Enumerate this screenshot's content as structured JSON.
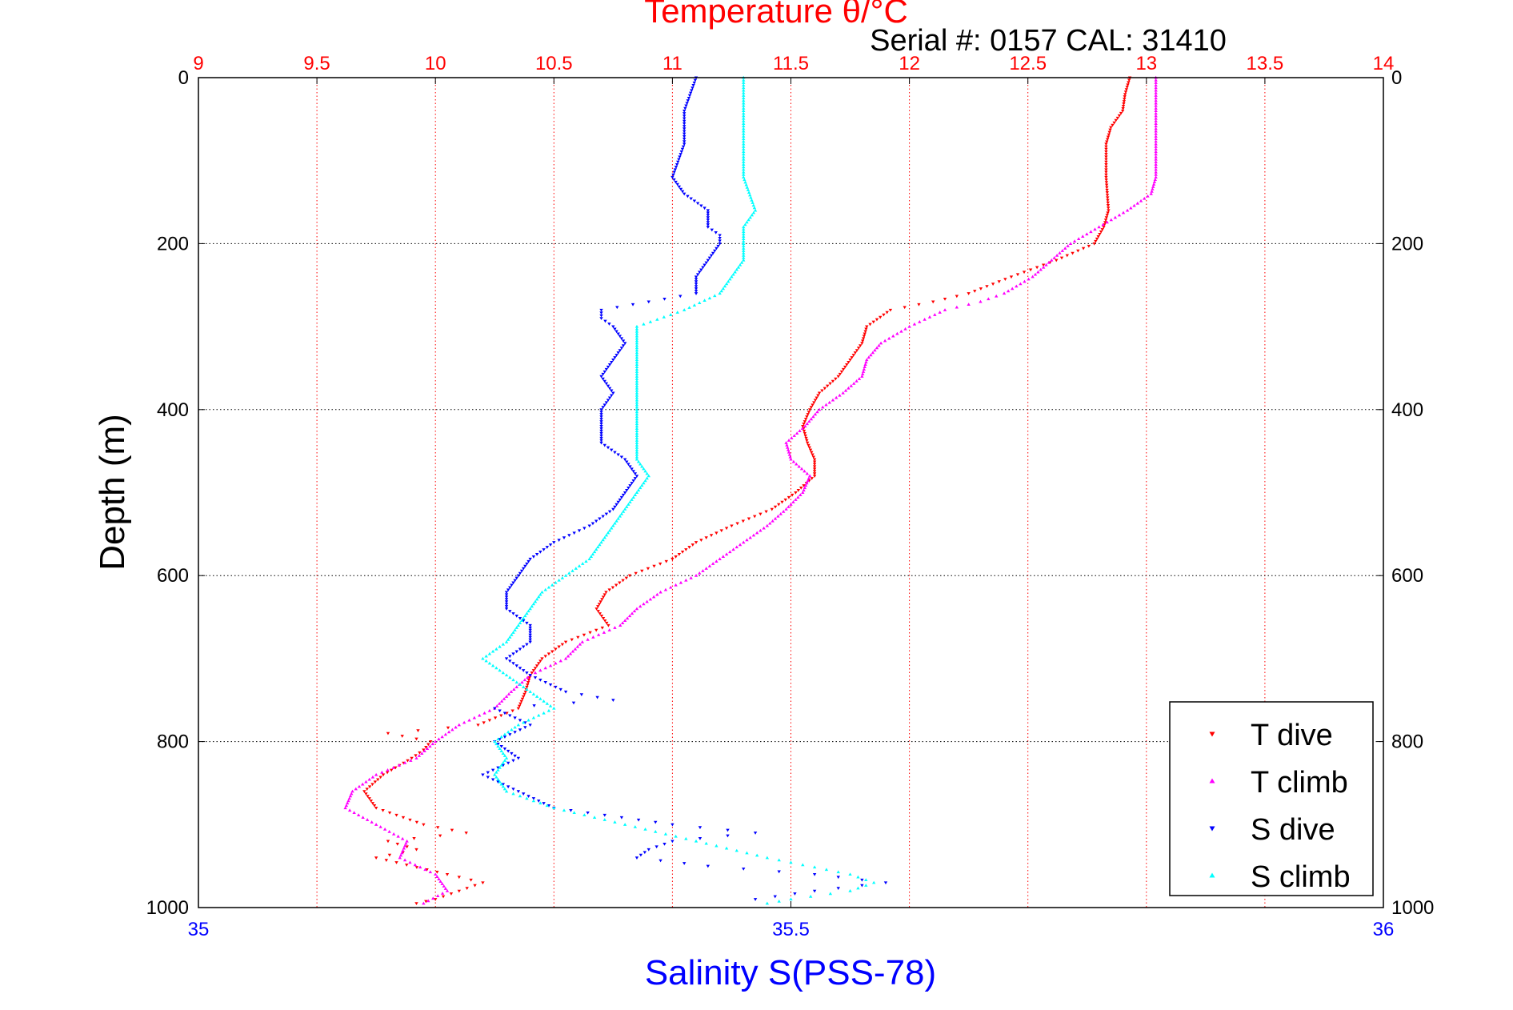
{
  "chart_data": {
    "type": "scatter",
    "title": "Temperature θ/°C",
    "subtitle": "Serial #: 0157  CAL: 31410",
    "ylabel": "Depth (m)",
    "xlabel_bottom": "Salinity S(PSS-78)",
    "axes": {
      "temperature_top": {
        "label": "Temperature θ/°C",
        "range": [
          9,
          14
        ],
        "ticks": [
          "9",
          "9.5",
          "10",
          "10.5",
          "11",
          "11.5",
          "12",
          "12.5",
          "13",
          "13.5",
          "14"
        ],
        "color": "#ff0000"
      },
      "salinity_bottom": {
        "label": "Salinity S(PSS-78)",
        "range": [
          35,
          36
        ],
        "ticks": [
          "35",
          "35.5",
          "36"
        ],
        "color": "#0000ff"
      },
      "depth": {
        "label": "Depth (m)",
        "range": [
          0,
          1000
        ],
        "reversed": true,
        "ticks": [
          "0",
          "200",
          "400",
          "600",
          "800",
          "1000"
        ]
      }
    },
    "grid": true,
    "legend_position": "bottom-right",
    "legend": [
      "T dive",
      "T climb",
      "S dive",
      "S climb"
    ],
    "series": [
      {
        "name": "T dive",
        "axis": "temperature",
        "color": "#ff0000",
        "marker": "triangle-down",
        "points": [
          [
            0,
            12.93
          ],
          [
            20,
            12.91
          ],
          [
            40,
            12.9
          ],
          [
            60,
            12.85
          ],
          [
            80,
            12.83
          ],
          [
            120,
            12.83
          ],
          [
            160,
            12.84
          ],
          [
            180,
            12.82
          ],
          [
            200,
            12.78
          ],
          [
            220,
            12.62
          ],
          [
            240,
            12.43
          ],
          [
            260,
            12.25
          ],
          [
            270,
            12.1
          ],
          [
            280,
            11.92
          ],
          [
            300,
            11.82
          ],
          [
            320,
            11.8
          ],
          [
            340,
            11.75
          ],
          [
            360,
            11.7
          ],
          [
            380,
            11.62
          ],
          [
            400,
            11.58
          ],
          [
            420,
            11.55
          ],
          [
            440,
            11.57
          ],
          [
            460,
            11.6
          ],
          [
            480,
            11.6
          ],
          [
            500,
            11.52
          ],
          [
            520,
            11.42
          ],
          [
            540,
            11.25
          ],
          [
            560,
            11.1
          ],
          [
            580,
            11.0
          ],
          [
            600,
            10.82
          ],
          [
            620,
            10.72
          ],
          [
            640,
            10.68
          ],
          [
            660,
            10.73
          ],
          [
            680,
            10.55
          ],
          [
            700,
            10.45
          ],
          [
            720,
            10.4
          ],
          [
            740,
            10.38
          ],
          [
            760,
            10.35
          ],
          [
            780,
            10.18
          ],
          [
            790,
            9.8
          ],
          [
            800,
            9.98
          ],
          [
            810,
            9.95
          ],
          [
            820,
            9.9
          ],
          [
            840,
            9.78
          ],
          [
            860,
            9.7
          ],
          [
            880,
            9.75
          ],
          [
            900,
            9.95
          ],
          [
            910,
            10.13
          ],
          [
            920,
            9.8
          ],
          [
            930,
            9.92
          ],
          [
            940,
            9.75
          ],
          [
            960,
            10.05
          ],
          [
            970,
            10.2
          ],
          [
            980,
            10.1
          ],
          [
            990,
            10.0
          ],
          [
            995,
            9.92
          ]
        ]
      },
      {
        "name": "T climb",
        "axis": "temperature",
        "color": "#ff00ff",
        "marker": "triangle-up",
        "points": [
          [
            0,
            13.04
          ],
          [
            40,
            13.04
          ],
          [
            80,
            13.04
          ],
          [
            120,
            13.04
          ],
          [
            140,
            13.02
          ],
          [
            160,
            12.92
          ],
          [
            180,
            12.8
          ],
          [
            200,
            12.68
          ],
          [
            220,
            12.6
          ],
          [
            240,
            12.52
          ],
          [
            260,
            12.4
          ],
          [
            270,
            12.3
          ],
          [
            280,
            12.15
          ],
          [
            300,
            12.0
          ],
          [
            320,
            11.88
          ],
          [
            340,
            11.82
          ],
          [
            360,
            11.8
          ],
          [
            380,
            11.72
          ],
          [
            400,
            11.62
          ],
          [
            420,
            11.56
          ],
          [
            440,
            11.48
          ],
          [
            460,
            11.5
          ],
          [
            480,
            11.58
          ],
          [
            500,
            11.55
          ],
          [
            520,
            11.48
          ],
          [
            540,
            11.4
          ],
          [
            560,
            11.3
          ],
          [
            580,
            11.2
          ],
          [
            600,
            11.1
          ],
          [
            620,
            10.95
          ],
          [
            640,
            10.85
          ],
          [
            660,
            10.78
          ],
          [
            680,
            10.62
          ],
          [
            700,
            10.55
          ],
          [
            720,
            10.4
          ],
          [
            740,
            10.32
          ],
          [
            760,
            10.25
          ],
          [
            780,
            10.1
          ],
          [
            800,
            10.0
          ],
          [
            820,
            9.92
          ],
          [
            840,
            9.75
          ],
          [
            860,
            9.65
          ],
          [
            880,
            9.62
          ],
          [
            900,
            9.75
          ],
          [
            920,
            9.88
          ],
          [
            940,
            9.85
          ],
          [
            960,
            10.0
          ],
          [
            980,
            10.05
          ],
          [
            995,
            9.95
          ]
        ]
      },
      {
        "name": "S dive",
        "axis": "salinity",
        "color": "#0000ff",
        "marker": "triangle-down",
        "points": [
          [
            0,
            35.42
          ],
          [
            40,
            35.41
          ],
          [
            80,
            35.41
          ],
          [
            120,
            35.4
          ],
          [
            140,
            35.41
          ],
          [
            160,
            35.43
          ],
          [
            180,
            35.43
          ],
          [
            190,
            35.44
          ],
          [
            200,
            35.44
          ],
          [
            220,
            35.43
          ],
          [
            240,
            35.42
          ],
          [
            260,
            35.42
          ],
          [
            270,
            35.38
          ],
          [
            280,
            35.34
          ],
          [
            290,
            35.34
          ],
          [
            300,
            35.35
          ],
          [
            320,
            35.36
          ],
          [
            340,
            35.35
          ],
          [
            360,
            35.34
          ],
          [
            380,
            35.35
          ],
          [
            400,
            35.34
          ],
          [
            420,
            35.34
          ],
          [
            440,
            35.34
          ],
          [
            460,
            35.36
          ],
          [
            480,
            35.37
          ],
          [
            500,
            35.36
          ],
          [
            520,
            35.35
          ],
          [
            540,
            35.33
          ],
          [
            560,
            35.3
          ],
          [
            580,
            35.28
          ],
          [
            600,
            35.27
          ],
          [
            620,
            35.26
          ],
          [
            640,
            35.26
          ],
          [
            660,
            35.28
          ],
          [
            680,
            35.28
          ],
          [
            700,
            35.26
          ],
          [
            720,
            35.28
          ],
          [
            740,
            35.31
          ],
          [
            750,
            35.35
          ],
          [
            760,
            35.25
          ],
          [
            780,
            35.28
          ],
          [
            800,
            35.25
          ],
          [
            820,
            35.27
          ],
          [
            840,
            35.24
          ],
          [
            860,
            35.27
          ],
          [
            880,
            35.3
          ],
          [
            900,
            35.4
          ],
          [
            910,
            35.47
          ],
          [
            920,
            35.4
          ],
          [
            930,
            35.38
          ],
          [
            940,
            35.37
          ],
          [
            950,
            35.43
          ],
          [
            960,
            35.52
          ],
          [
            970,
            35.58
          ],
          [
            980,
            35.52
          ],
          [
            990,
            35.47
          ]
        ]
      },
      {
        "name": "S climb",
        "axis": "salinity",
        "color": "#00ffff",
        "marker": "triangle-up",
        "points": [
          [
            0,
            35.46
          ],
          [
            40,
            35.46
          ],
          [
            80,
            35.46
          ],
          [
            120,
            35.46
          ],
          [
            160,
            35.47
          ],
          [
            180,
            35.46
          ],
          [
            200,
            35.46
          ],
          [
            220,
            35.46
          ],
          [
            240,
            35.45
          ],
          [
            260,
            35.44
          ],
          [
            280,
            35.41
          ],
          [
            300,
            35.37
          ],
          [
            320,
            35.37
          ],
          [
            340,
            35.37
          ],
          [
            360,
            35.37
          ],
          [
            380,
            35.37
          ],
          [
            400,
            35.37
          ],
          [
            420,
            35.37
          ],
          [
            440,
            35.37
          ],
          [
            460,
            35.37
          ],
          [
            480,
            35.38
          ],
          [
            500,
            35.37
          ],
          [
            520,
            35.36
          ],
          [
            540,
            35.35
          ],
          [
            560,
            35.34
          ],
          [
            580,
            35.33
          ],
          [
            600,
            35.31
          ],
          [
            620,
            35.29
          ],
          [
            640,
            35.28
          ],
          [
            660,
            35.27
          ],
          [
            680,
            35.26
          ],
          [
            700,
            35.24
          ],
          [
            720,
            35.26
          ],
          [
            740,
            35.28
          ],
          [
            760,
            35.3
          ],
          [
            780,
            35.27
          ],
          [
            800,
            35.25
          ],
          [
            820,
            35.26
          ],
          [
            840,
            35.25
          ],
          [
            860,
            35.26
          ],
          [
            880,
            35.3
          ],
          [
            900,
            35.36
          ],
          [
            920,
            35.42
          ],
          [
            940,
            35.48
          ],
          [
            960,
            35.55
          ],
          [
            970,
            35.57
          ],
          [
            980,
            35.55
          ],
          [
            990,
            35.5
          ],
          [
            995,
            35.48
          ]
        ]
      }
    ]
  }
}
